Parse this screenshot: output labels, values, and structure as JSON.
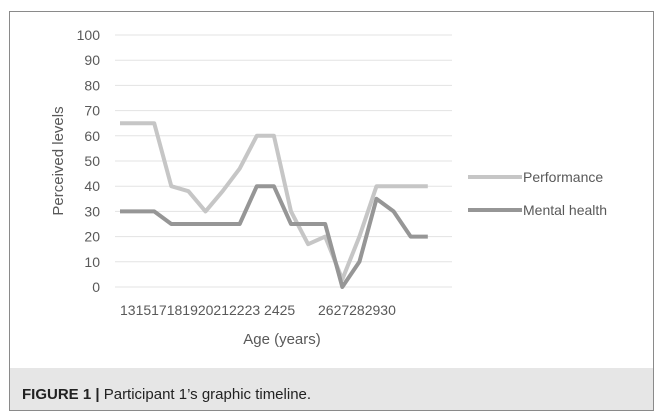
{
  "chart_data": {
    "type": "line",
    "xlabel": "Age (years)",
    "ylabel": "Perceived levels",
    "ylim": [
      0,
      100
    ],
    "yticks": [
      0,
      10,
      20,
      30,
      40,
      50,
      60,
      70,
      80,
      90,
      100
    ],
    "x_tick_text": [
      "131517181920212223 2425",
      "2627282930"
    ],
    "legend_position": "right",
    "grid": true,
    "series": [
      {
        "name": "Performance",
        "color": "#c6c6c6",
        "points": [
          [
            13,
            65
          ],
          [
            14,
            65
          ],
          [
            15,
            65
          ],
          [
            16,
            40
          ],
          [
            17,
            38
          ],
          [
            18,
            30
          ],
          [
            19,
            38
          ],
          [
            20,
            47
          ],
          [
            21,
            60
          ],
          [
            22,
            60
          ],
          [
            23,
            30
          ],
          [
            24,
            17
          ],
          [
            25,
            20
          ],
          [
            26,
            3
          ],
          [
            27,
            20
          ],
          [
            28,
            40
          ],
          [
            29,
            40
          ],
          [
            30,
            40
          ],
          [
            31,
            40
          ]
        ]
      },
      {
        "name": "Mental health",
        "color": "#969696",
        "points": [
          [
            13,
            30
          ],
          [
            14,
            30
          ],
          [
            15,
            30
          ],
          [
            16,
            25
          ],
          [
            17,
            25
          ],
          [
            18,
            25
          ],
          [
            19,
            25
          ],
          [
            20,
            25
          ],
          [
            21,
            40
          ],
          [
            22,
            40
          ],
          [
            23,
            25
          ],
          [
            24,
            25
          ],
          [
            25,
            25
          ],
          [
            26,
            0
          ],
          [
            27,
            10
          ],
          [
            28,
            35
          ],
          [
            29,
            30
          ],
          [
            30,
            20
          ],
          [
            31,
            20
          ]
        ]
      }
    ]
  },
  "caption": {
    "label": "FIGURE 1 |",
    "text": "Participant 1’s graphic timeline."
  }
}
